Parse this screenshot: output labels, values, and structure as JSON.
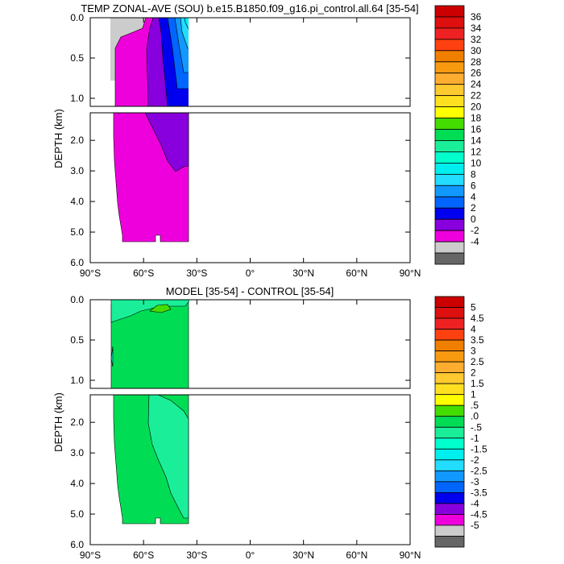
{
  "chart_data": [
    {
      "type": "contour",
      "title": "TEMP ZONAL-AVE (SOU) b.e15.B1850.f09_g16.pi_control.all.64 [35-54]",
      "ylabel": "DEPTH (km)",
      "upper_ticks": [
        "0.0",
        "0.5",
        "1.0"
      ],
      "lower_ticks": [
        "2.0",
        "3.0",
        "4.0",
        "5.0",
        "6.0"
      ],
      "xticks": [
        "90°S",
        "60°S",
        "30°S",
        "0°",
        "30°N",
        "60°N",
        "90°N"
      ],
      "colorbar": {
        "labels": [
          "36",
          "34",
          "32",
          "30",
          "28",
          "26",
          "24",
          "22",
          "20",
          "18",
          "16",
          "14",
          "12",
          "10",
          "8",
          "6",
          "4",
          "2",
          "0",
          "-2",
          "-4"
        ],
        "colors": [
          "#cc0000",
          "#dd0f0f",
          "#ee2222",
          "#ff4010",
          "#f07e00",
          "#f89a10",
          "#ffad30",
          "#ffc930",
          "#ffe020",
          "#ffff00",
          "#44dd00",
          "#00dd55",
          "#1aee99",
          "#00ffcc",
          "#00eeee",
          "#22ddff",
          "#1199ff",
          "#0066ff",
          "#0000ee",
          "#8800dd",
          "#ee00dd",
          "#cccccc",
          "#666666"
        ]
      }
    },
    {
      "type": "contour",
      "title": "MODEL [35-54] - CONTROL [35-54]",
      "ylabel": "DEPTH (km)",
      "upper_ticks": [
        "0.0",
        "0.5",
        "1.0"
      ],
      "lower_ticks": [
        "2.0",
        "3.0",
        "4.0",
        "5.0",
        "6.0"
      ],
      "xticks": [
        "90°S",
        "60°S",
        "30°S",
        "0°",
        "30°N",
        "60°N",
        "90°N"
      ],
      "colorbar": {
        "labels": [
          "5",
          "4.5",
          "4",
          "3.5",
          "3",
          "2.5",
          "2",
          "1.5",
          "1",
          ".5",
          ".0",
          "-.5",
          "-1",
          "-1.5",
          "-2",
          "-2.5",
          "-3",
          "-3.5",
          "-4",
          "-4.5",
          "-5"
        ],
        "colors": [
          "#cc0000",
          "#dd0f0f",
          "#ee2222",
          "#ff4010",
          "#f07e00",
          "#f89a10",
          "#ffad30",
          "#ffc930",
          "#ffe020",
          "#ffff00",
          "#44dd00",
          "#00dd55",
          "#1aee99",
          "#00ffcc",
          "#00eeee",
          "#22ddff",
          "#1199ff",
          "#0066ff",
          "#0000ee",
          "#8800dd",
          "#ee00dd",
          "#cccccc",
          "#666666"
        ]
      }
    }
  ]
}
